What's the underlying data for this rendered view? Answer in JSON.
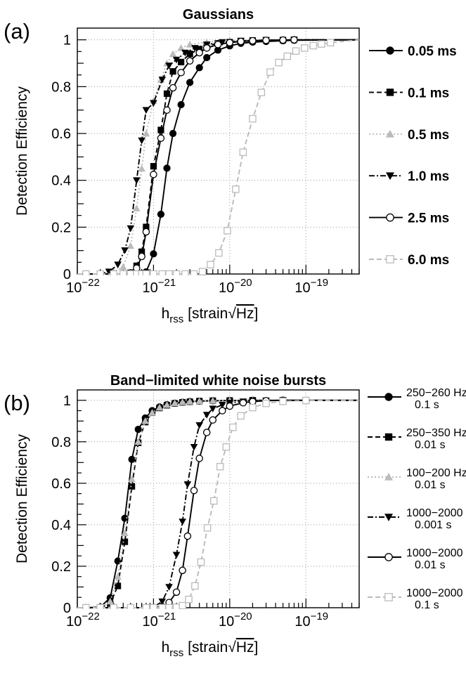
{
  "chart_data": [
    {
      "type": "line",
      "panel": "(a)",
      "title": "Gaussians",
      "xlabel": "h_rss [strain/√Hz]",
      "ylabel": "Detection Efficiency",
      "xscale": "log",
      "xlim": [
        1e-22,
        5e-19
      ],
      "ylim": [
        0,
        1.05
      ],
      "x_ticks": [
        "10^-22",
        "10^-21",
        "10^-20",
        "10^-19"
      ],
      "y_ticks": [
        "0",
        "0.2",
        "0.4",
        "0.6",
        "0.8",
        "1"
      ],
      "grid": true,
      "legend_position": "right",
      "series": [
        {
          "name": "0.05 ms",
          "color": "#000000",
          "line": "solid",
          "marker": "filled-circle",
          "x": [
            1.3e-22,
            2e-22,
            3e-22,
            4e-22,
            5e-22,
            6e-22,
            7e-22,
            8e-22,
            1e-21,
            1.25e-21,
            1.5e-21,
            1.8e-21,
            2.3e-21,
            3e-21,
            4e-21,
            5e-21,
            7e-21,
            1e-20,
            1.4e-20,
            2e-20,
            3e-20,
            5e-20,
            7e-20
          ],
          "y": [
            0.0,
            0.0,
            0.0,
            0.0,
            0.0,
            0.0,
            0.003,
            0.009,
            0.086,
            0.255,
            0.452,
            0.6,
            0.723,
            0.818,
            0.881,
            0.924,
            0.956,
            0.974,
            0.985,
            0.99,
            0.993,
            0.996,
            0.998
          ]
        },
        {
          "name": "0.1 ms",
          "color": "#000000",
          "line": "dashed",
          "marker": "filled-square",
          "x": [
            1.3e-22,
            2e-22,
            3e-22,
            4e-22,
            5e-22,
            6e-22,
            7e-22,
            8e-22,
            1e-21,
            1.25e-21,
            1.5e-21,
            1.8e-21,
            2.3e-21,
            3e-21,
            4e-21,
            5e-21,
            7e-21,
            1e-20,
            1.4e-20,
            2e-20,
            3e-20,
            5e-20,
            7e-20
          ],
          "y": [
            0.0,
            0.0,
            0.0,
            0.0,
            0.005,
            0.035,
            0.095,
            0.201,
            0.46,
            0.615,
            0.77,
            0.865,
            0.905,
            0.94,
            0.96,
            0.975,
            0.985,
            0.99,
            0.994,
            0.997,
            0.998,
            0.999,
            1.0
          ]
        },
        {
          "name": "0.5 ms",
          "color": "#bbbbbb",
          "line": "dotted",
          "marker": "filled-triangle-up",
          "x": [
            1.3e-22,
            2e-22,
            3e-22,
            4e-22,
            5e-22,
            6e-22,
            7e-22,
            8e-22,
            1e-21,
            1.25e-21,
            1.5e-21,
            1.8e-21,
            2.3e-21,
            3e-21,
            5e-21,
            1e-20,
            3e-20,
            7e-20
          ],
          "y": [
            0.0,
            0.0,
            0.01,
            0.03,
            0.12,
            0.28,
            0.45,
            0.6,
            0.74,
            0.83,
            0.9,
            0.94,
            0.965,
            0.98,
            0.99,
            0.997,
            0.999,
            1.0
          ]
        },
        {
          "name": "1.0 ms",
          "color": "#000000",
          "line": "dash-dot",
          "marker": "filled-triangle-down",
          "x": [
            1.3e-22,
            2e-22,
            2.6e-22,
            3.4e-22,
            4.2e-22,
            5e-22,
            6e-22,
            7e-22,
            8e-22,
            1e-21,
            1.3e-21,
            1.6e-21,
            2e-21,
            2.6e-21,
            3.5e-21,
            5e-21,
            8e-21,
            1.4e-20,
            3e-20,
            7e-20
          ],
          "y": [
            0.0,
            0.0,
            0.01,
            0.04,
            0.101,
            0.195,
            0.4,
            0.57,
            0.7,
            0.73,
            0.83,
            0.89,
            0.915,
            0.945,
            0.965,
            0.98,
            0.99,
            0.996,
            0.999,
            1.0
          ]
        },
        {
          "name": "2.5 ms",
          "color": "#000000",
          "line": "solid",
          "marker": "open-circle",
          "x": [
            1.3e-22,
            2e-22,
            3e-22,
            4e-22,
            5e-22,
            6e-22,
            7e-22,
            8e-22,
            1e-21,
            1.25e-21,
            1.5e-21,
            1.8e-21,
            2.3e-21,
            3e-21,
            4e-21,
            5e-21,
            7e-21,
            1e-20,
            1.4e-20,
            2e-20,
            3e-20,
            5e-20,
            7e-20
          ],
          "y": [
            0.0,
            0.0,
            0.0,
            0.0,
            0.005,
            0.025,
            0.075,
            0.18,
            0.425,
            0.58,
            0.7,
            0.795,
            0.86,
            0.91,
            0.945,
            0.965,
            0.98,
            0.988,
            0.993,
            0.996,
            0.998,
            0.999,
            1.0
          ]
        },
        {
          "name": "6.0 ms",
          "color": "#bbbbbb",
          "line": "dashed",
          "marker": "open-square",
          "x": [
            1.3e-22,
            2e-22,
            3e-22,
            4e-22,
            5e-22,
            6e-22,
            7e-22,
            8e-22,
            1e-21,
            1.3e-21,
            1.6e-21,
            2e-21,
            2.6e-21,
            3.4e-21,
            4.4e-21,
            5.6e-21,
            7.2e-21,
            9.3e-21,
            1.2e-20,
            1.5e-20,
            2e-20,
            2.6e-20,
            3.4e-20,
            4.4e-20,
            5.7e-20,
            7.4e-20,
            9.6e-20,
            1.25e-19,
            1.6e-19,
            2.1e-19
          ],
          "y": [
            0.0,
            0.0,
            0.0,
            0.0,
            0.0,
            0.0,
            0.0,
            0.0,
            0.0,
            0.0,
            0.0,
            0.0,
            0.0,
            0.0,
            0.01,
            0.04,
            0.09,
            0.185,
            0.362,
            0.52,
            0.663,
            0.775,
            0.862,
            0.903,
            0.93,
            0.952,
            0.965,
            0.975,
            0.982,
            0.988
          ]
        }
      ]
    },
    {
      "type": "line",
      "panel": "(b)",
      "title": "Band−limited white noise bursts",
      "xlabel": "h_rss [strain/√Hz]",
      "ylabel": "Detection Efficiency",
      "xscale": "log",
      "xlim": [
        1e-22,
        5e-19
      ],
      "ylim": [
        0,
        1.05
      ],
      "x_ticks": [
        "10^-22",
        "10^-21",
        "10^-20",
        "10^-19"
      ],
      "y_ticks": [
        "0",
        "0.2",
        "0.4",
        "0.6",
        "0.8",
        "1"
      ],
      "grid": true,
      "legend_position": "right",
      "series": [
        {
          "name": "250−260 Hz,\n0.1 s",
          "color": "#000000",
          "line": "solid",
          "marker": "filled-circle",
          "x": [
            1.3e-22,
            2e-22,
            2.7e-22,
            3.4e-22,
            4.2e-22,
            5.2e-22,
            6.3e-22,
            7.8e-22,
            9.6e-22,
            1.2e-21,
            1.5e-21,
            1.9e-21,
            2.4e-21,
            3e-21,
            4e-21,
            6e-21,
            1e-20,
            2e-20,
            5e-20
          ],
          "y": [
            0.0,
            0.003,
            0.048,
            0.225,
            0.431,
            0.715,
            0.86,
            0.915,
            0.95,
            0.968,
            0.979,
            0.986,
            0.991,
            0.994,
            0.996,
            0.998,
            0.999,
            1.0,
            1.0
          ]
        },
        {
          "name": "250−350 Hz,\n0.01 s",
          "color": "#000000",
          "line": "dashed",
          "marker": "filled-square",
          "x": [
            1.3e-22,
            2e-22,
            2.7e-22,
            3.4e-22,
            4.2e-22,
            5.2e-22,
            6.3e-22,
            7.8e-22,
            9.6e-22,
            1.2e-21,
            1.5e-21,
            1.9e-21,
            2.4e-21,
            3e-21,
            4e-21,
            6e-21,
            1e-20,
            2e-20,
            5e-20
          ],
          "y": [
            0.0,
            0.0,
            0.02,
            0.105,
            0.318,
            0.585,
            0.795,
            0.895,
            0.94,
            0.963,
            0.976,
            0.985,
            0.99,
            0.993,
            0.996,
            0.998,
            0.999,
            1.0,
            1.0
          ]
        },
        {
          "name": "100−200 Hz,\n0.01 s",
          "color": "#bbbbbb",
          "line": "dotted",
          "marker": "filled-triangle-up",
          "x": [
            1.3e-22,
            2e-22,
            2.7e-22,
            3.4e-22,
            4.2e-22,
            5.2e-22,
            6.3e-22,
            7.8e-22,
            9.6e-22,
            1.2e-21,
            1.5e-21,
            1.9e-21,
            2.4e-21,
            3e-21,
            4e-21,
            6e-21,
            1e-20,
            2e-20,
            5e-20
          ],
          "y": [
            0.0,
            0.0,
            0.03,
            0.15,
            0.36,
            0.62,
            0.8,
            0.9,
            0.94,
            0.965,
            0.978,
            0.986,
            0.991,
            0.994,
            0.996,
            0.998,
            0.999,
            1.0,
            1.0
          ]
        },
        {
          "name": "1000−2000 Hz,\n0.001 s",
          "color": "#000000",
          "line": "dash-dot",
          "marker": "filled-triangle-down",
          "x": [
            1.3e-22,
            2e-22,
            3e-22,
            5e-22,
            8e-22,
            1e-21,
            1.3e-21,
            1.6e-21,
            2e-21,
            2.4e-21,
            2.8e-21,
            3.4e-21,
            4e-21,
            5e-21,
            6e-21,
            8e-21,
            1e-20,
            1.5e-20,
            2e-20,
            3e-20,
            5e-20
          ],
          "y": [
            0.0,
            0.0,
            0.0,
            0.0,
            0.0,
            0.003,
            0.03,
            0.1,
            0.255,
            0.415,
            0.595,
            0.775,
            0.88,
            0.93,
            0.96,
            0.978,
            0.988,
            0.994,
            0.997,
            0.999,
            1.0
          ]
        },
        {
          "name": "1000−2000 Hz,\n0.01 s",
          "color": "#000000",
          "line": "solid",
          "marker": "open-circle",
          "x": [
            1.3e-22,
            2e-22,
            3e-22,
            5e-22,
            8e-22,
            1e-21,
            1.3e-21,
            1.6e-21,
            2e-21,
            2.4e-21,
            2.8e-21,
            3.4e-21,
            4e-21,
            5e-21,
            6e-21,
            8e-21,
            1e-20,
            1.5e-20,
            2e-20,
            3e-20,
            5e-20
          ],
          "y": [
            0.0,
            0.0,
            0.0,
            0.0,
            0.0,
            0.0,
            0.005,
            0.025,
            0.075,
            0.18,
            0.345,
            0.565,
            0.72,
            0.845,
            0.905,
            0.95,
            0.972,
            0.988,
            0.994,
            0.998,
            1.0
          ]
        },
        {
          "name": "1000−2000 Hz,\n0.1 s",
          "color": "#bbbbbb",
          "line": "dashed",
          "marker": "open-square",
          "x": [
            1.3e-22,
            2e-22,
            3e-22,
            5e-22,
            8e-22,
            1e-21,
            1.3e-21,
            1.6e-21,
            2e-21,
            2.4e-21,
            2.9e-21,
            3.5e-21,
            4.2e-21,
            5.1e-21,
            6.2e-21,
            7.5e-21,
            9e-21,
            1.1e-20,
            1.4e-20,
            2e-20,
            3e-20,
            5e-20,
            1e-19
          ],
          "y": [
            0.0,
            0.0,
            0.0,
            0.0,
            0.0,
            0.0,
            0.0,
            0.0,
            0.002,
            0.01,
            0.04,
            0.105,
            0.22,
            0.385,
            0.515,
            0.68,
            0.775,
            0.87,
            0.925,
            0.965,
            0.985,
            0.995,
            0.999
          ]
        }
      ]
    }
  ]
}
